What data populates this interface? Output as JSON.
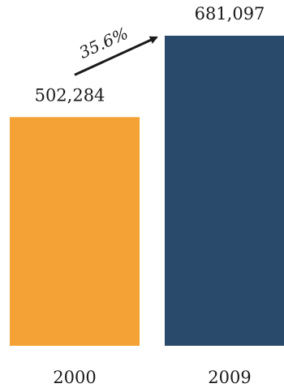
{
  "chart_data": {
    "type": "bar",
    "categories": [
      "2000",
      "2009"
    ],
    "values": [
      502284,
      681097
    ],
    "value_labels": [
      "502,284",
      "681,097"
    ],
    "change_label": "35.6%",
    "colors": [
      "#f4a235",
      "#2a4a6b"
    ],
    "title": "",
    "xlabel": "",
    "ylabel": "",
    "ylim": [
      0,
      700000
    ],
    "grid": false
  }
}
